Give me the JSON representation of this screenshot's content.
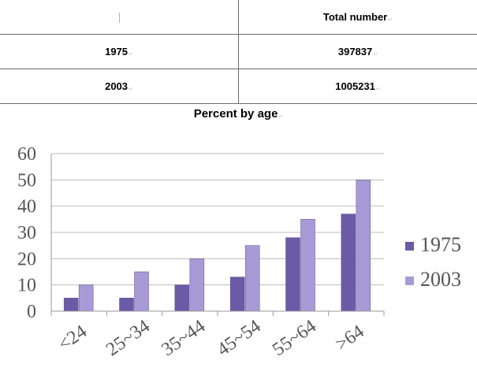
{
  "table": {
    "header": {
      "year": "",
      "total_label": "Total number"
    },
    "rows": [
      {
        "year": "1975",
        "total": "397837"
      },
      {
        "year": "2003",
        "total": "1005231"
      }
    ]
  },
  "chart_data": {
    "type": "bar",
    "title": "Percent by age",
    "xlabel": "",
    "ylabel": "",
    "categories": [
      "<24",
      "25~34",
      "35~44",
      "45~54",
      "55~64",
      ">64"
    ],
    "series": [
      {
        "name": "1975",
        "values": [
          5,
          5,
          10,
          13,
          28,
          37
        ],
        "color": "#6b5aa5"
      },
      {
        "name": "2003",
        "values": [
          10,
          15,
          20,
          25,
          35,
          50
        ],
        "color": "#a69bd6"
      }
    ],
    "ylim": [
      0,
      60
    ],
    "yticks": [
      "0",
      "10",
      "20",
      "30",
      "40",
      "50",
      "60"
    ],
    "grid": true,
    "legend_position": "right"
  }
}
